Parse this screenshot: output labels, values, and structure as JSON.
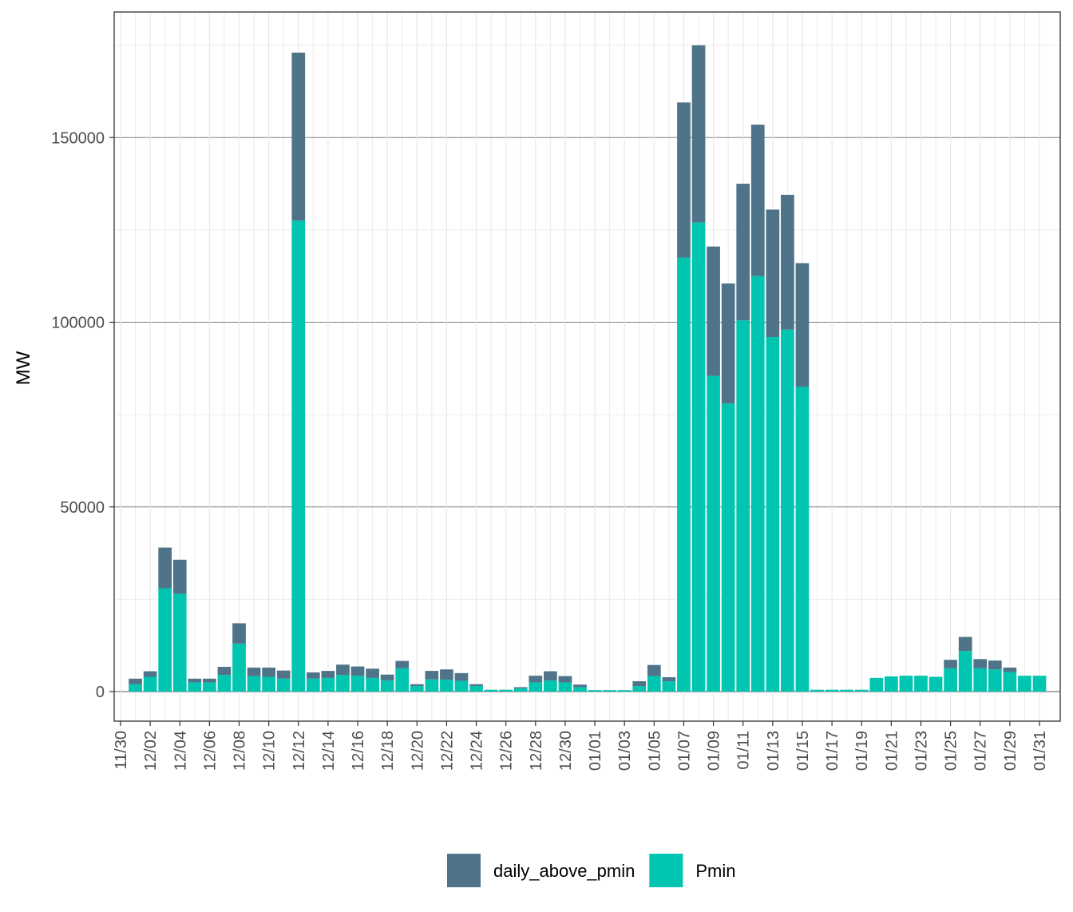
{
  "chart_data": {
    "type": "bar",
    "stacked": true,
    "xlabel": "",
    "ylabel": "MW",
    "ylim": [
      -8000,
      184000
    ],
    "y_ticks": [
      0,
      50000,
      100000,
      150000
    ],
    "y_tick_labels": [
      "0",
      "50000",
      "100000",
      "150000"
    ],
    "x_tick_labels": [
      "11/30",
      "12/02",
      "12/04",
      "12/06",
      "12/08",
      "12/10",
      "12/12",
      "12/14",
      "12/16",
      "12/18",
      "12/20",
      "12/22",
      "12/24",
      "12/26",
      "12/28",
      "12/30",
      "01/01",
      "01/03",
      "01/05",
      "01/07",
      "01/09",
      "01/11",
      "01/13",
      "01/15",
      "01/17",
      "01/19",
      "01/21",
      "01/23",
      "01/25",
      "01/27",
      "01/29",
      "01/31"
    ],
    "categories": [
      "12/01",
      "12/02",
      "12/03",
      "12/04",
      "12/05",
      "12/06",
      "12/07",
      "12/08",
      "12/09",
      "12/10",
      "12/11",
      "12/12",
      "12/13",
      "12/14",
      "12/15",
      "12/16",
      "12/17",
      "12/18",
      "12/19",
      "12/20",
      "12/21",
      "12/22",
      "12/23",
      "12/24",
      "12/25",
      "12/26",
      "12/27",
      "12/28",
      "12/29",
      "12/30",
      "12/31",
      "01/01",
      "01/02",
      "01/03",
      "01/04",
      "01/05",
      "01/06",
      "01/07",
      "01/08",
      "01/09",
      "01/10",
      "01/11",
      "01/12",
      "01/13",
      "01/14",
      "01/15",
      "01/16",
      "01/17",
      "01/18",
      "01/19",
      "01/20",
      "01/21",
      "01/22",
      "01/23",
      "01/24",
      "01/25",
      "01/26",
      "01/27",
      "01/28",
      "01/29",
      "01/30",
      "01/31"
    ],
    "series": [
      {
        "name": "Pmin",
        "color": "#00C5B0",
        "values": [
          2000,
          4000,
          28000,
          26500,
          2500,
          2500,
          4500,
          13000,
          4200,
          4000,
          3500,
          127500,
          3500,
          3700,
          4500,
          4300,
          3700,
          3000,
          6300,
          1500,
          3300,
          3200,
          2900,
          1500,
          500,
          500,
          900,
          2500,
          3000,
          2500,
          1200,
          400,
          400,
          400,
          1500,
          4200,
          2800,
          117500,
          127000,
          85500,
          78000,
          100500,
          112500,
          96000,
          98000,
          82500,
          500,
          500,
          500,
          500,
          3700,
          4100,
          4300,
          4300,
          4000,
          6300,
          11000,
          6300,
          6000,
          5300,
          4300,
          4300
        ]
      },
      {
        "name": "daily_above_pmin",
        "color": "#4F7489",
        "values": [
          1500,
          1500,
          11000,
          9200,
          1000,
          1000,
          2200,
          5500,
          2300,
          2500,
          2200,
          45500,
          1700,
          1900,
          2800,
          2500,
          2500,
          1600,
          2000,
          500,
          2300,
          2800,
          2100,
          500,
          0,
          0,
          300,
          1800,
          2500,
          1700,
          700,
          0,
          0,
          0,
          1300,
          3000,
          1100,
          42000,
          48000,
          35000,
          32500,
          37000,
          41000,
          34500,
          36500,
          33500,
          0,
          0,
          0,
          0,
          0,
          0,
          0,
          0,
          0,
          2300,
          3800,
          2500,
          2400,
          1200,
          0,
          0
        ]
      }
    ],
    "legend": {
      "placement": "bottom",
      "entries": [
        "daily_above_pmin",
        "Pmin"
      ]
    },
    "grid": true,
    "panel_border": true
  }
}
